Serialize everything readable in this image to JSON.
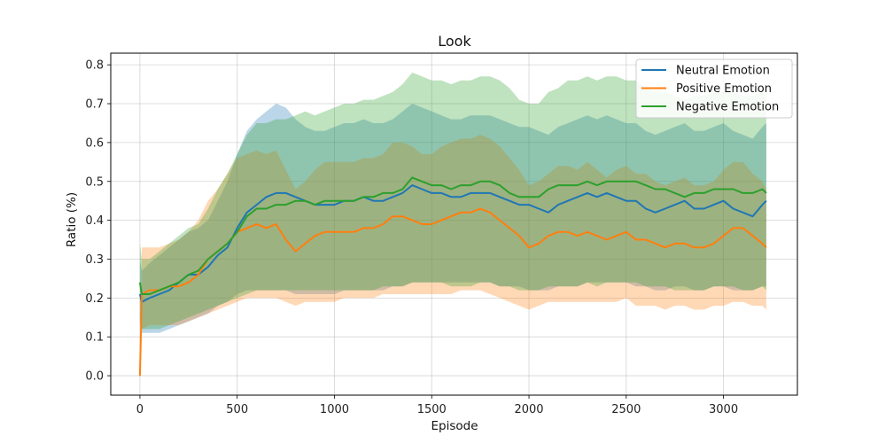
{
  "chart_data": {
    "type": "line",
    "title": "Look",
    "xlabel": "Episode",
    "ylabel": "Ratio (%)",
    "xlim": [
      -150,
      3380
    ],
    "ylim": [
      -0.05,
      0.83
    ],
    "xticks": [
      0,
      500,
      1000,
      1500,
      2000,
      2500,
      3000
    ],
    "yticks": [
      0.0,
      0.1,
      0.2,
      0.3,
      0.4,
      0.5,
      0.6,
      0.7,
      0.8
    ],
    "grid": true,
    "legend_position": "top-right",
    "x": [
      0,
      10,
      50,
      100,
      150,
      200,
      250,
      300,
      350,
      400,
      450,
      500,
      550,
      600,
      650,
      700,
      750,
      800,
      850,
      900,
      950,
      1000,
      1050,
      1100,
      1150,
      1200,
      1250,
      1300,
      1350,
      1400,
      1450,
      1500,
      1550,
      1600,
      1650,
      1700,
      1750,
      1800,
      1850,
      1900,
      1950,
      2000,
      2050,
      2100,
      2150,
      2200,
      2250,
      2300,
      2350,
      2400,
      2450,
      2500,
      2550,
      2600,
      2650,
      2700,
      2750,
      2800,
      2850,
      2900,
      2950,
      3000,
      3050,
      3100,
      3150,
      3200,
      3220
    ],
    "series": [
      {
        "name": "Neutral Emotion",
        "color": "#1f77b4",
        "values": [
          0.21,
          0.19,
          0.2,
          0.21,
          0.22,
          0.24,
          0.26,
          0.26,
          0.28,
          0.31,
          0.33,
          0.38,
          0.42,
          0.44,
          0.46,
          0.47,
          0.47,
          0.46,
          0.45,
          0.44,
          0.44,
          0.44,
          0.45,
          0.45,
          0.46,
          0.45,
          0.45,
          0.46,
          0.47,
          0.49,
          0.48,
          0.47,
          0.47,
          0.46,
          0.46,
          0.47,
          0.47,
          0.47,
          0.46,
          0.45,
          0.44,
          0.44,
          0.43,
          0.42,
          0.44,
          0.45,
          0.46,
          0.47,
          0.46,
          0.47,
          0.46,
          0.45,
          0.45,
          0.43,
          0.42,
          0.43,
          0.44,
          0.45,
          0.43,
          0.43,
          0.44,
          0.45,
          0.43,
          0.42,
          0.41,
          0.44,
          0.45
        ],
        "lower": [
          0.13,
          0.11,
          0.11,
          0.11,
          0.12,
          0.13,
          0.14,
          0.15,
          0.16,
          0.18,
          0.19,
          0.21,
          0.22,
          0.22,
          0.22,
          0.22,
          0.22,
          0.21,
          0.21,
          0.21,
          0.21,
          0.21,
          0.22,
          0.22,
          0.22,
          0.22,
          0.22,
          0.23,
          0.23,
          0.24,
          0.24,
          0.24,
          0.24,
          0.24,
          0.24,
          0.24,
          0.24,
          0.24,
          0.23,
          0.23,
          0.23,
          0.22,
          0.22,
          0.22,
          0.23,
          0.23,
          0.23,
          0.24,
          0.24,
          0.24,
          0.24,
          0.24,
          0.23,
          0.23,
          0.22,
          0.22,
          0.23,
          0.23,
          0.22,
          0.22,
          0.23,
          0.23,
          0.22,
          0.22,
          0.22,
          0.23,
          0.23
        ],
        "upper": [
          0.3,
          0.27,
          0.29,
          0.31,
          0.33,
          0.35,
          0.37,
          0.38,
          0.4,
          0.45,
          0.5,
          0.57,
          0.63,
          0.66,
          0.68,
          0.7,
          0.69,
          0.66,
          0.64,
          0.63,
          0.63,
          0.64,
          0.65,
          0.65,
          0.66,
          0.65,
          0.65,
          0.66,
          0.68,
          0.7,
          0.69,
          0.68,
          0.67,
          0.66,
          0.66,
          0.67,
          0.67,
          0.67,
          0.66,
          0.65,
          0.64,
          0.64,
          0.63,
          0.62,
          0.64,
          0.65,
          0.66,
          0.67,
          0.66,
          0.67,
          0.66,
          0.65,
          0.65,
          0.63,
          0.62,
          0.63,
          0.64,
          0.65,
          0.63,
          0.63,
          0.64,
          0.65,
          0.63,
          0.62,
          0.61,
          0.64,
          0.65
        ]
      },
      {
        "name": "Positive Emotion",
        "color": "#ff7f0e",
        "values": [
          0.0,
          0.21,
          0.22,
          0.22,
          0.23,
          0.23,
          0.24,
          0.26,
          0.3,
          0.32,
          0.34,
          0.37,
          0.38,
          0.39,
          0.38,
          0.39,
          0.35,
          0.32,
          0.34,
          0.36,
          0.37,
          0.37,
          0.37,
          0.37,
          0.38,
          0.38,
          0.39,
          0.41,
          0.41,
          0.4,
          0.39,
          0.39,
          0.4,
          0.41,
          0.42,
          0.42,
          0.43,
          0.42,
          0.4,
          0.38,
          0.36,
          0.33,
          0.34,
          0.36,
          0.37,
          0.37,
          0.36,
          0.37,
          0.36,
          0.35,
          0.36,
          0.37,
          0.35,
          0.35,
          0.34,
          0.33,
          0.34,
          0.34,
          0.33,
          0.33,
          0.34,
          0.36,
          0.38,
          0.38,
          0.36,
          0.34,
          0.33
        ],
        "lower": [
          0.0,
          0.12,
          0.13,
          0.13,
          0.13,
          0.13,
          0.14,
          0.15,
          0.16,
          0.17,
          0.18,
          0.19,
          0.2,
          0.2,
          0.2,
          0.2,
          0.19,
          0.18,
          0.19,
          0.19,
          0.19,
          0.19,
          0.2,
          0.2,
          0.2,
          0.2,
          0.21,
          0.21,
          0.21,
          0.21,
          0.21,
          0.21,
          0.21,
          0.21,
          0.22,
          0.22,
          0.22,
          0.21,
          0.2,
          0.19,
          0.18,
          0.17,
          0.18,
          0.19,
          0.19,
          0.19,
          0.19,
          0.19,
          0.19,
          0.19,
          0.19,
          0.2,
          0.18,
          0.18,
          0.18,
          0.17,
          0.18,
          0.18,
          0.17,
          0.17,
          0.18,
          0.18,
          0.19,
          0.19,
          0.18,
          0.18,
          0.17
        ],
        "upper": [
          0.0,
          0.33,
          0.33,
          0.33,
          0.34,
          0.35,
          0.37,
          0.4,
          0.45,
          0.48,
          0.52,
          0.56,
          0.57,
          0.58,
          0.57,
          0.58,
          0.53,
          0.48,
          0.5,
          0.53,
          0.55,
          0.55,
          0.55,
          0.55,
          0.56,
          0.56,
          0.57,
          0.6,
          0.6,
          0.59,
          0.57,
          0.57,
          0.59,
          0.6,
          0.61,
          0.61,
          0.62,
          0.61,
          0.59,
          0.56,
          0.53,
          0.49,
          0.5,
          0.52,
          0.54,
          0.54,
          0.53,
          0.55,
          0.53,
          0.51,
          0.53,
          0.54,
          0.52,
          0.52,
          0.5,
          0.49,
          0.5,
          0.51,
          0.49,
          0.49,
          0.5,
          0.53,
          0.55,
          0.55,
          0.52,
          0.5,
          0.48
        ]
      },
      {
        "name": "Negative Emotion",
        "color": "#2ca02c",
        "values": [
          0.24,
          0.21,
          0.21,
          0.22,
          0.23,
          0.24,
          0.26,
          0.27,
          0.3,
          0.32,
          0.34,
          0.37,
          0.41,
          0.43,
          0.43,
          0.44,
          0.44,
          0.45,
          0.45,
          0.44,
          0.45,
          0.45,
          0.45,
          0.45,
          0.46,
          0.46,
          0.47,
          0.47,
          0.48,
          0.51,
          0.5,
          0.49,
          0.49,
          0.48,
          0.49,
          0.49,
          0.5,
          0.5,
          0.49,
          0.47,
          0.46,
          0.46,
          0.46,
          0.48,
          0.49,
          0.49,
          0.49,
          0.5,
          0.49,
          0.5,
          0.5,
          0.5,
          0.5,
          0.49,
          0.48,
          0.48,
          0.47,
          0.46,
          0.47,
          0.47,
          0.48,
          0.48,
          0.48,
          0.47,
          0.47,
          0.48,
          0.47
        ],
        "lower": [
          0.14,
          0.12,
          0.12,
          0.12,
          0.13,
          0.14,
          0.15,
          0.16,
          0.17,
          0.18,
          0.19,
          0.2,
          0.21,
          0.22,
          0.22,
          0.22,
          0.22,
          0.22,
          0.22,
          0.22,
          0.22,
          0.22,
          0.22,
          0.22,
          0.22,
          0.22,
          0.23,
          0.23,
          0.23,
          0.24,
          0.24,
          0.24,
          0.24,
          0.23,
          0.23,
          0.23,
          0.24,
          0.24,
          0.23,
          0.23,
          0.22,
          0.22,
          0.22,
          0.23,
          0.23,
          0.23,
          0.23,
          0.24,
          0.23,
          0.24,
          0.24,
          0.24,
          0.24,
          0.23,
          0.23,
          0.23,
          0.22,
          0.22,
          0.22,
          0.22,
          0.23,
          0.23,
          0.23,
          0.22,
          0.22,
          0.23,
          0.22
        ],
        "upper": [
          0.34,
          0.3,
          0.3,
          0.32,
          0.34,
          0.36,
          0.38,
          0.39,
          0.43,
          0.48,
          0.52,
          0.57,
          0.62,
          0.65,
          0.65,
          0.66,
          0.66,
          0.67,
          0.68,
          0.67,
          0.68,
          0.69,
          0.7,
          0.7,
          0.71,
          0.71,
          0.72,
          0.73,
          0.75,
          0.78,
          0.77,
          0.76,
          0.76,
          0.75,
          0.76,
          0.76,
          0.77,
          0.77,
          0.76,
          0.74,
          0.71,
          0.7,
          0.7,
          0.73,
          0.74,
          0.76,
          0.76,
          0.77,
          0.76,
          0.77,
          0.77,
          0.76,
          0.76,
          0.74,
          0.73,
          0.73,
          0.72,
          0.71,
          0.72,
          0.72,
          0.73,
          0.73,
          0.73,
          0.72,
          0.72,
          0.73,
          0.72
        ]
      }
    ]
  }
}
